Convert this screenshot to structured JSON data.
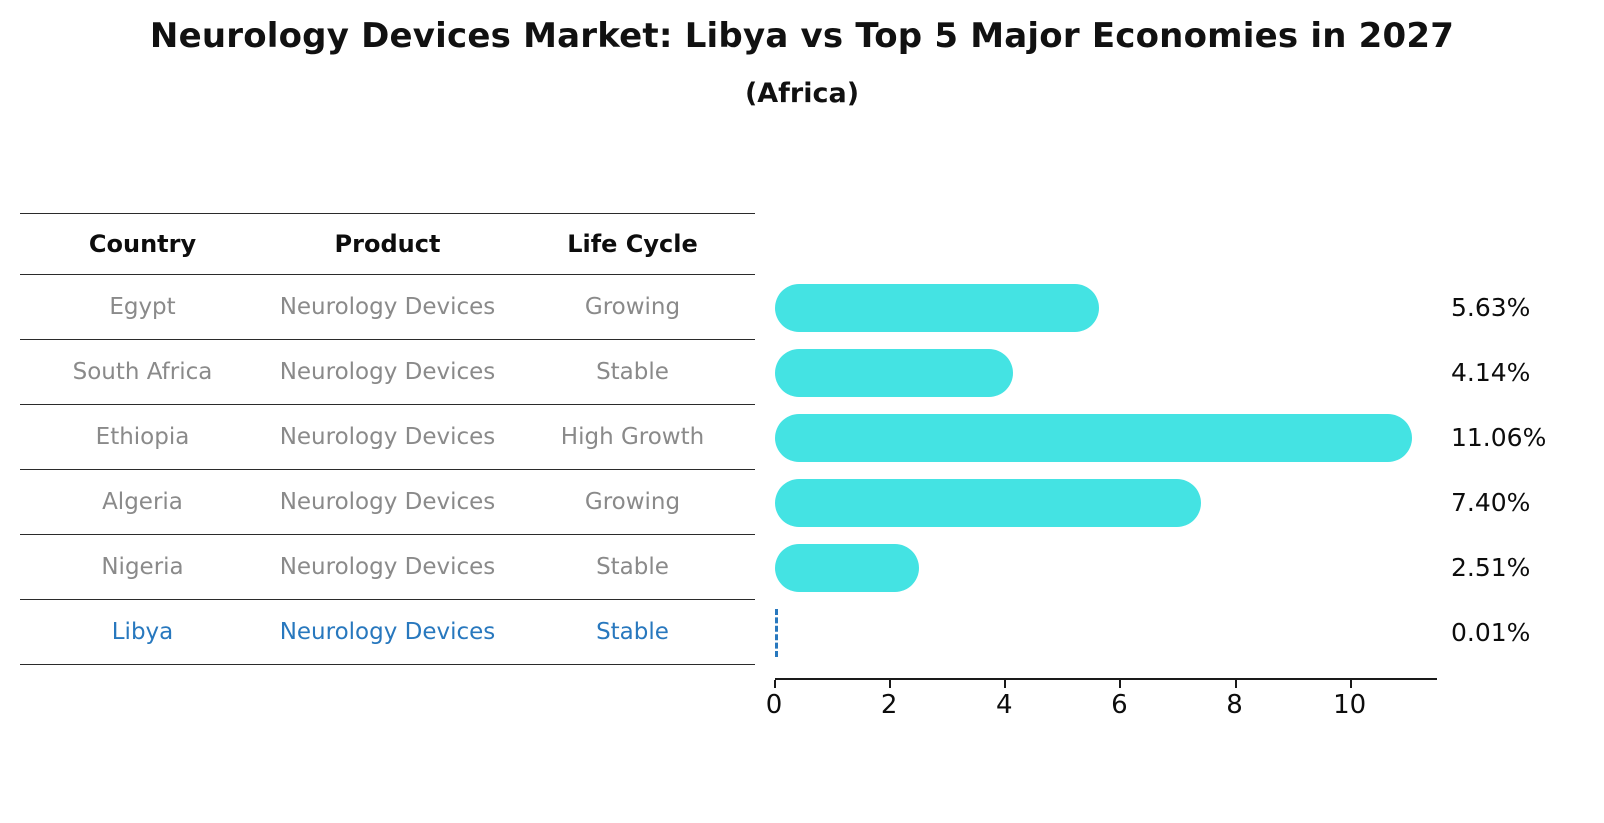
{
  "title": "Neurology Devices Market: Libya vs Top 5 Major Economies in 2027",
  "subtitle": "(Africa)",
  "table": {
    "headers": [
      "Country",
      "Product",
      "Life Cycle"
    ]
  },
  "chart_data": {
    "type": "bar",
    "orientation": "horizontal",
    "title": "Neurology Devices Market: Libya vs Top 5 Major Economies in 2027 (Africa)",
    "categories": [
      "Egypt",
      "South Africa",
      "Ethiopia",
      "Algeria",
      "Nigeria",
      "Libya"
    ],
    "values": [
      5.63,
      4.14,
      11.06,
      7.4,
      2.51,
      0.01
    ],
    "value_labels": [
      "5.63%",
      "4.14%",
      "11.06%",
      "7.40%",
      "2.51%",
      "0.01%"
    ],
    "products": [
      "Neurology Devices",
      "Neurology Devices",
      "Neurology Devices",
      "Neurology Devices",
      "Neurology Devices",
      "Neurology Devices"
    ],
    "life_cycles": [
      "Growing",
      "Stable",
      "High Growth",
      "Growing",
      "Stable",
      "Stable"
    ],
    "xlabel": "",
    "ylabel": "",
    "xlim": [
      0,
      11.5
    ],
    "x_ticks": [
      "0",
      "2",
      "4",
      "6",
      "8",
      "10"
    ],
    "grid": false,
    "legend": "none",
    "bar_color": "#44e3e3",
    "highlight_index": 5,
    "highlight_category": "Libya",
    "highlight_color": "#2878be"
  }
}
